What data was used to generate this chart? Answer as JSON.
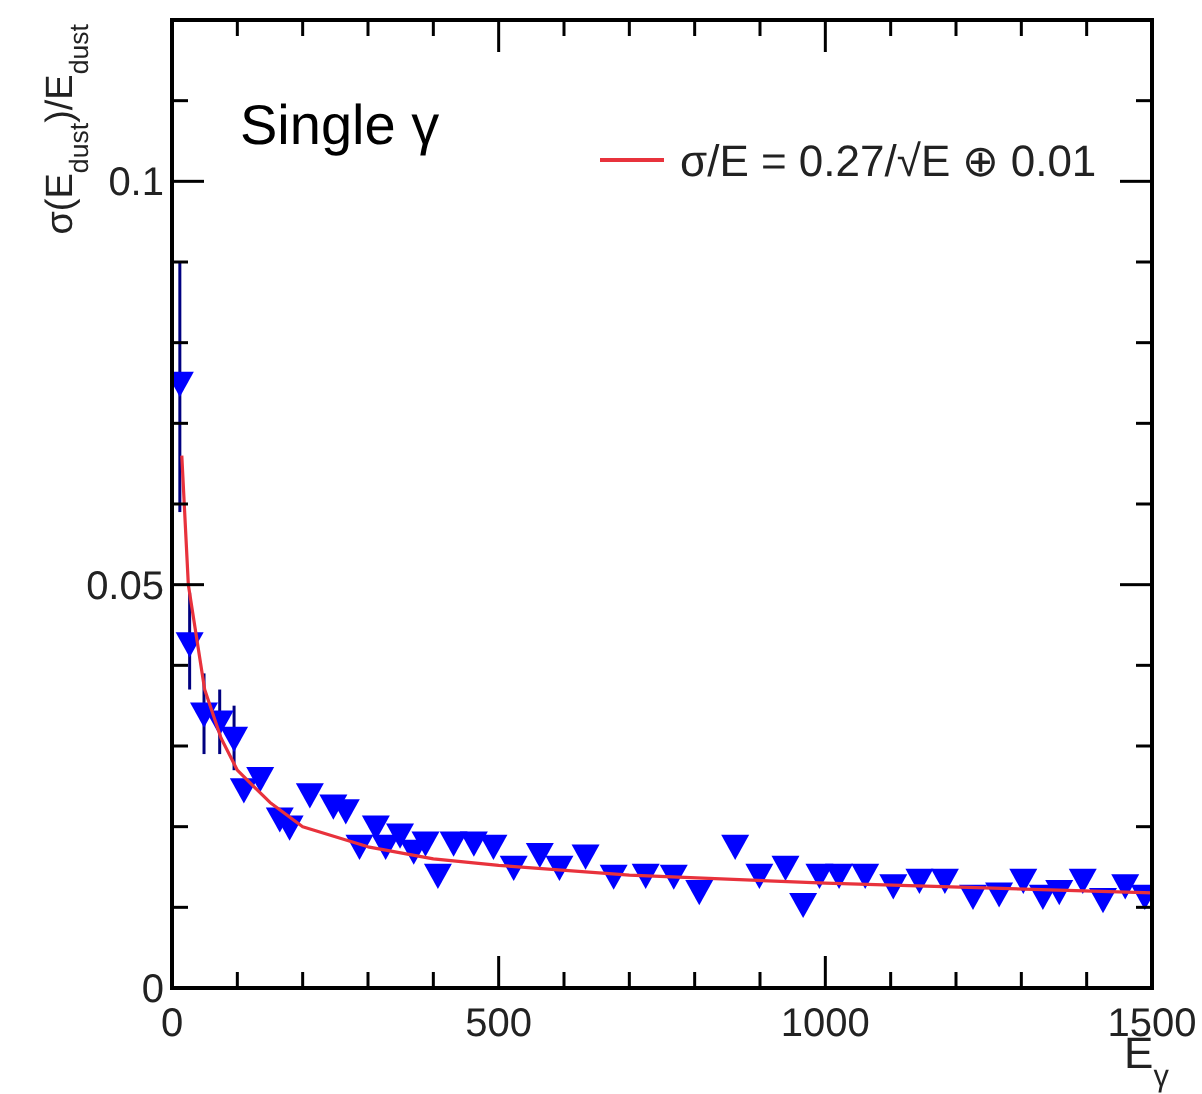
{
  "chart_data": {
    "type": "scatter",
    "xlabel": "E$_{γ}$",
    "ylabel": "σ(E$_{dust}$)/E$_{dust}$",
    "annotations": [
      "Single γ"
    ],
    "xlim": [
      0,
      1500
    ],
    "ylim": [
      0,
      0.12
    ],
    "xticks": [
      0,
      {
        "value": 100,
        "label": null
      },
      {
        "value": 200,
        "label": null
      },
      {
        "value": 300,
        "label": null
      },
      {
        "value": 400,
        "label": null
      },
      500,
      {
        "value": 600,
        "label": null
      },
      {
        "value": 700,
        "label": null
      },
      {
        "value": 800,
        "label": null
      },
      {
        "value": 900,
        "label": null
      },
      1000,
      {
        "value": 1100,
        "label": null
      },
      {
        "value": 1200,
        "label": null
      },
      {
        "value": 1300,
        "label": null
      },
      {
        "value": 1400,
        "label": null
      },
      1500
    ],
    "yticks": [
      0,
      {
        "value": 0.01,
        "label": null
      },
      {
        "value": 0.02,
        "label": null
      },
      {
        "value": 0.03,
        "label": null
      },
      {
        "value": 0.04,
        "label": null
      },
      0.05,
      {
        "value": 0.06,
        "label": null
      },
      {
        "value": 0.07,
        "label": null
      },
      {
        "value": 0.08,
        "label": null
      },
      {
        "value": 0.09,
        "label": null
      },
      0.1,
      {
        "value": 0.11,
        "label": null
      }
    ],
    "grid": false,
    "legend": "top right",
    "marker": "triangle",
    "series": [
      {
        "type": "scatter",
        "color": "#0000ff",
        "x": [
          12,
          27,
          49,
          73,
          95,
          110,
          135,
          165,
          180,
          211,
          247,
          266,
          287,
          312,
          327,
          349,
          370,
          388,
          407,
          431,
          462,
          492,
          523,
          563,
          593,
          633,
          676,
          725,
          768,
          807,
          862,
          899,
          939,
          966,
          991,
          1021,
          1061,
          1104,
          1144,
          1183,
          1226,
          1266,
          1303,
          1333,
          1358,
          1394,
          1425,
          1459,
          1489
        ],
        "values": [
          0.075,
          0.0427,
          0.034,
          0.033,
          0.031,
          0.0246,
          0.026,
          0.021,
          0.02,
          0.024,
          0.0226,
          0.022,
          0.0176,
          0.02,
          0.0176,
          0.019,
          0.017,
          0.018,
          0.014,
          0.018,
          0.018,
          0.0176,
          0.015,
          0.0166,
          0.015,
          0.0164,
          0.0139,
          0.014,
          0.0139,
          0.012,
          0.0176,
          0.014,
          0.015,
          0.0104,
          0.014,
          0.014,
          0.014,
          0.0127,
          0.0134,
          0.0134,
          0.0114,
          0.0117,
          0.0134,
          0.0114,
          0.012,
          0.0134,
          0.011,
          0.0127,
          0.0114
        ],
        "errors": [
          [
            0.059,
            0.09
          ],
          [
            0.037,
            0.049
          ],
          [
            0.029,
            0.039
          ],
          [
            0.029,
            0.037
          ],
          [
            0.027,
            0.035
          ],
          null,
          null,
          null,
          null,
          null,
          null,
          null,
          null,
          null,
          null,
          null,
          null,
          null,
          null,
          null,
          null,
          null,
          null,
          null,
          null,
          null,
          null,
          null,
          null,
          null,
          null,
          null,
          null,
          null,
          null,
          null,
          null,
          null,
          null,
          null,
          null,
          null,
          null,
          null,
          null,
          null,
          null,
          null,
          null
        ]
      },
      {
        "type": "line",
        "name": "σ/E = 0.27/√E ⊕ 0.01",
        "color": "#e8323c",
        "line_style": "solid",
        "marker": "none",
        "x": [
          15,
          25,
          50,
          75,
          100,
          150,
          200,
          300,
          400,
          500,
          700,
          1000,
          1500
        ],
        "values": [
          0.066,
          0.05,
          0.037,
          0.031,
          0.027,
          0.023,
          0.02,
          0.0175,
          0.016,
          0.0152,
          0.014,
          0.013,
          0.0118
        ]
      }
    ]
  }
}
